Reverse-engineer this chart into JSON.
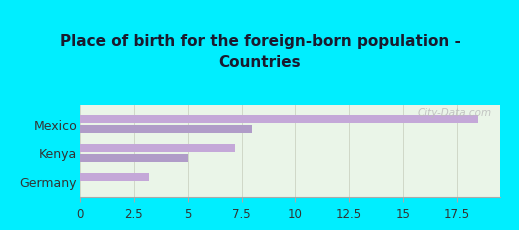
{
  "title": "Place of birth for the foreign-born population -\nCountries",
  "categories": [
    "Mexico",
    "Kenya",
    "Germany"
  ],
  "bars": [
    [
      18.5,
      8.0
    ],
    [
      7.2,
      5.0
    ],
    [
      3.2,
      null
    ]
  ],
  "bar_color1": "#c4a8d8",
  "bar_color2": "#b09cc8",
  "xlim": [
    0,
    19.5
  ],
  "xticks": [
    0,
    2.5,
    5,
    7.5,
    10,
    12.5,
    15,
    17.5
  ],
  "title_fontsize": 11,
  "label_fontsize": 9,
  "tick_fontsize": 8.5,
  "background_cyan": "#00eeff",
  "background_chart": "#eaf5e8",
  "grid_color": "#d0d8c8",
  "watermark": "City-Data.com"
}
